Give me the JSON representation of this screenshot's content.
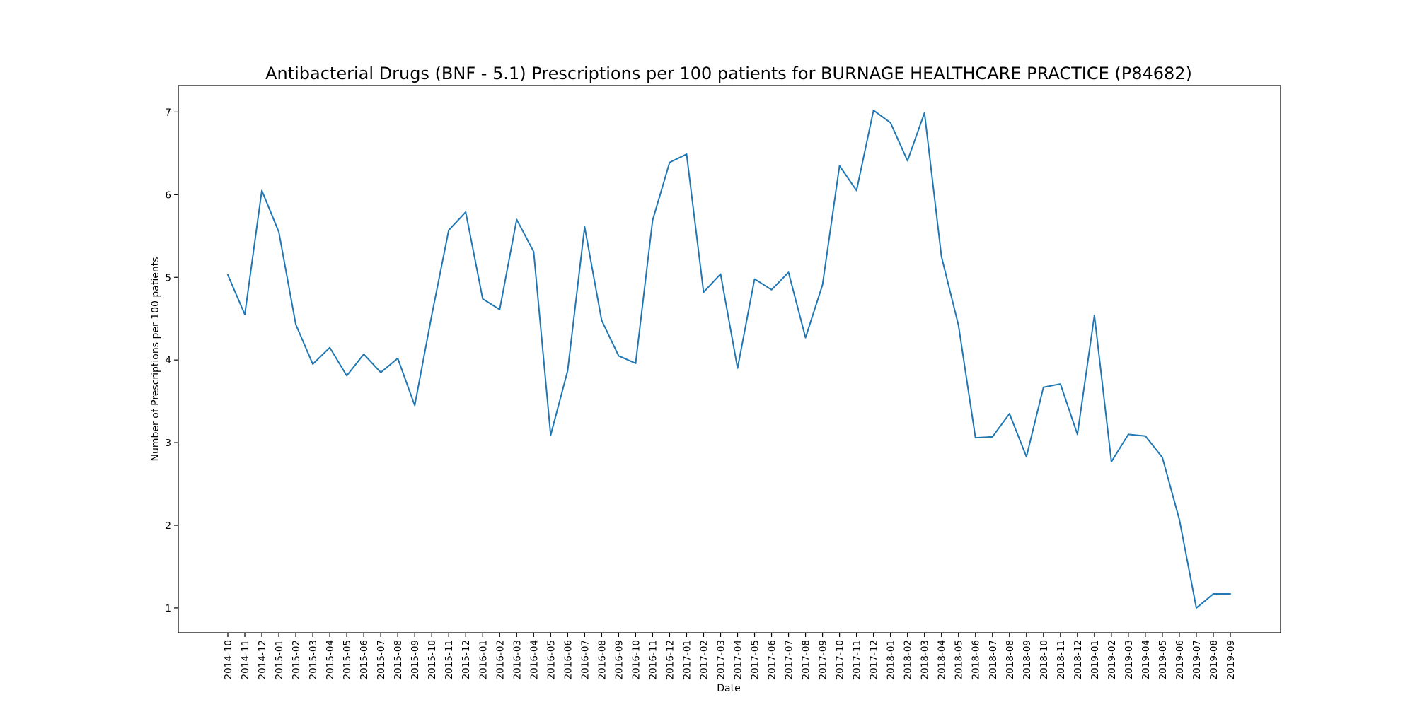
{
  "chart_data": {
    "type": "line",
    "title": "Antibacterial Drugs (BNF - 5.1) Prescriptions per 100 patients for BURNAGE HEALTHCARE PRACTICE (P84682)",
    "xlabel": "Date",
    "ylabel": "Number of Prescriptions per 100 patients",
    "ylim": [
      0.7,
      7.32
    ],
    "yticks": [
      1,
      2,
      3,
      4,
      5,
      6,
      7
    ],
    "grid": false,
    "legend": "none",
    "line_color": "#1f77b4",
    "x": [
      "2014-10",
      "2014-11",
      "2014-12",
      "2015-01",
      "2015-02",
      "2015-03",
      "2015-04",
      "2015-05",
      "2015-06",
      "2015-07",
      "2015-08",
      "2015-09",
      "2015-10",
      "2015-11",
      "2015-12",
      "2016-01",
      "2016-02",
      "2016-03",
      "2016-04",
      "2016-05",
      "2016-06",
      "2016-07",
      "2016-08",
      "2016-09",
      "2016-10",
      "2016-11",
      "2016-12",
      "2017-01",
      "2017-02",
      "2017-03",
      "2017-04",
      "2017-05",
      "2017-06",
      "2017-07",
      "2017-08",
      "2017-09",
      "2017-10",
      "2017-11",
      "2017-12",
      "2018-01",
      "2018-02",
      "2018-03",
      "2018-04",
      "2018-05",
      "2018-06",
      "2018-07",
      "2018-08",
      "2018-09",
      "2018-10",
      "2018-11",
      "2018-12",
      "2019-01",
      "2019-02",
      "2019-03",
      "2019-04",
      "2019-05",
      "2019-06",
      "2019-07",
      "2019-08",
      "2019-09"
    ],
    "series": [
      {
        "values": [
          5.03,
          4.55,
          6.05,
          5.55,
          4.43,
          3.95,
          4.15,
          3.81,
          4.07,
          3.85,
          4.02,
          3.45,
          4.54,
          5.57,
          5.79,
          4.74,
          4.61,
          5.7,
          5.31,
          3.09,
          3.87,
          5.61,
          4.48,
          4.05,
          3.96,
          5.69,
          6.39,
          6.49,
          4.82,
          5.04,
          3.9,
          4.98,
          4.85,
          5.06,
          4.27,
          4.91,
          6.35,
          6.05,
          7.02,
          6.87,
          6.41,
          6.99,
          5.25,
          4.42,
          3.06,
          3.07,
          3.35,
          2.83,
          3.67,
          3.71,
          3.1,
          4.54,
          2.77,
          3.1,
          3.08,
          2.82,
          2.07,
          1.0,
          1.17,
          1.17
        ]
      }
    ]
  }
}
